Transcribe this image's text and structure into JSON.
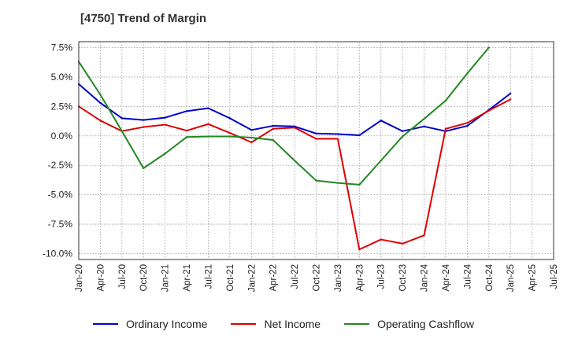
{
  "chart_data": {
    "type": "line",
    "title": "[4750]  Trend of Margin",
    "xlabel": "",
    "ylabel": "",
    "x": [
      "Jan-20",
      "Apr-20",
      "Jul-20",
      "Oct-20",
      "Jan-21",
      "Apr-21",
      "Jul-21",
      "Oct-21",
      "Jan-22",
      "Apr-22",
      "Jul-22",
      "Oct-22",
      "Jan-23",
      "Apr-23",
      "Jul-23",
      "Oct-23",
      "Jan-24",
      "Apr-24",
      "Jul-24",
      "Oct-24",
      "Jan-25",
      "Apr-25"
    ],
    "x_tick_labels": [
      "Jan-20",
      "Apr-20",
      "Jul-20",
      "Oct-20",
      "Jan-21",
      "Apr-21",
      "Jul-21",
      "Oct-21",
      "Jan-22",
      "Apr-22",
      "Jul-22",
      "Oct-22",
      "Jan-23",
      "Apr-23",
      "Jul-23",
      "Oct-23",
      "Jan-24",
      "Apr-24",
      "Jul-24",
      "Oct-24",
      "Jan-25",
      "Apr-25",
      "Jul-25"
    ],
    "y_ticks": [
      7.5,
      5.0,
      2.5,
      0.0,
      -2.5,
      -5.0,
      -7.5,
      -10.0
    ],
    "y_tick_labels": [
      "7.5%",
      "5.0%",
      "2.5%",
      "0.0%",
      "-2.5%",
      "-5.0%",
      "-7.5%",
      "-10.0%"
    ],
    "ylim": [
      -10.5,
      8.0
    ],
    "grid": true,
    "legend_position": "bottom",
    "series": [
      {
        "name": "Ordinary Income",
        "color": "#0000cc",
        "values": [
          4.4,
          2.8,
          1.5,
          1.35,
          1.55,
          2.1,
          2.35,
          1.5,
          0.5,
          0.85,
          0.8,
          0.2,
          0.15,
          0.05,
          1.3,
          0.4,
          0.8,
          0.4,
          0.85,
          2.2,
          3.6,
          null
        ]
      },
      {
        "name": "Net Income",
        "color": "#dd0000",
        "values": [
          2.5,
          1.3,
          0.4,
          0.75,
          0.95,
          0.45,
          1.0,
          0.25,
          -0.55,
          0.6,
          0.7,
          -0.25,
          -0.25,
          -9.65,
          -8.8,
          -9.15,
          -8.45,
          0.6,
          1.1,
          2.15,
          3.1,
          null
        ]
      },
      {
        "name": "Operating Cashflow",
        "color": "#228822",
        "values": [
          6.3,
          3.5,
          0.4,
          -2.75,
          -1.5,
          -0.1,
          -0.05,
          -0.05,
          -0.15,
          -0.35,
          -2.1,
          -3.8,
          -4.0,
          -4.15,
          -2.1,
          -0.05,
          1.45,
          3.0,
          5.3,
          7.5,
          null,
          null
        ]
      }
    ]
  }
}
